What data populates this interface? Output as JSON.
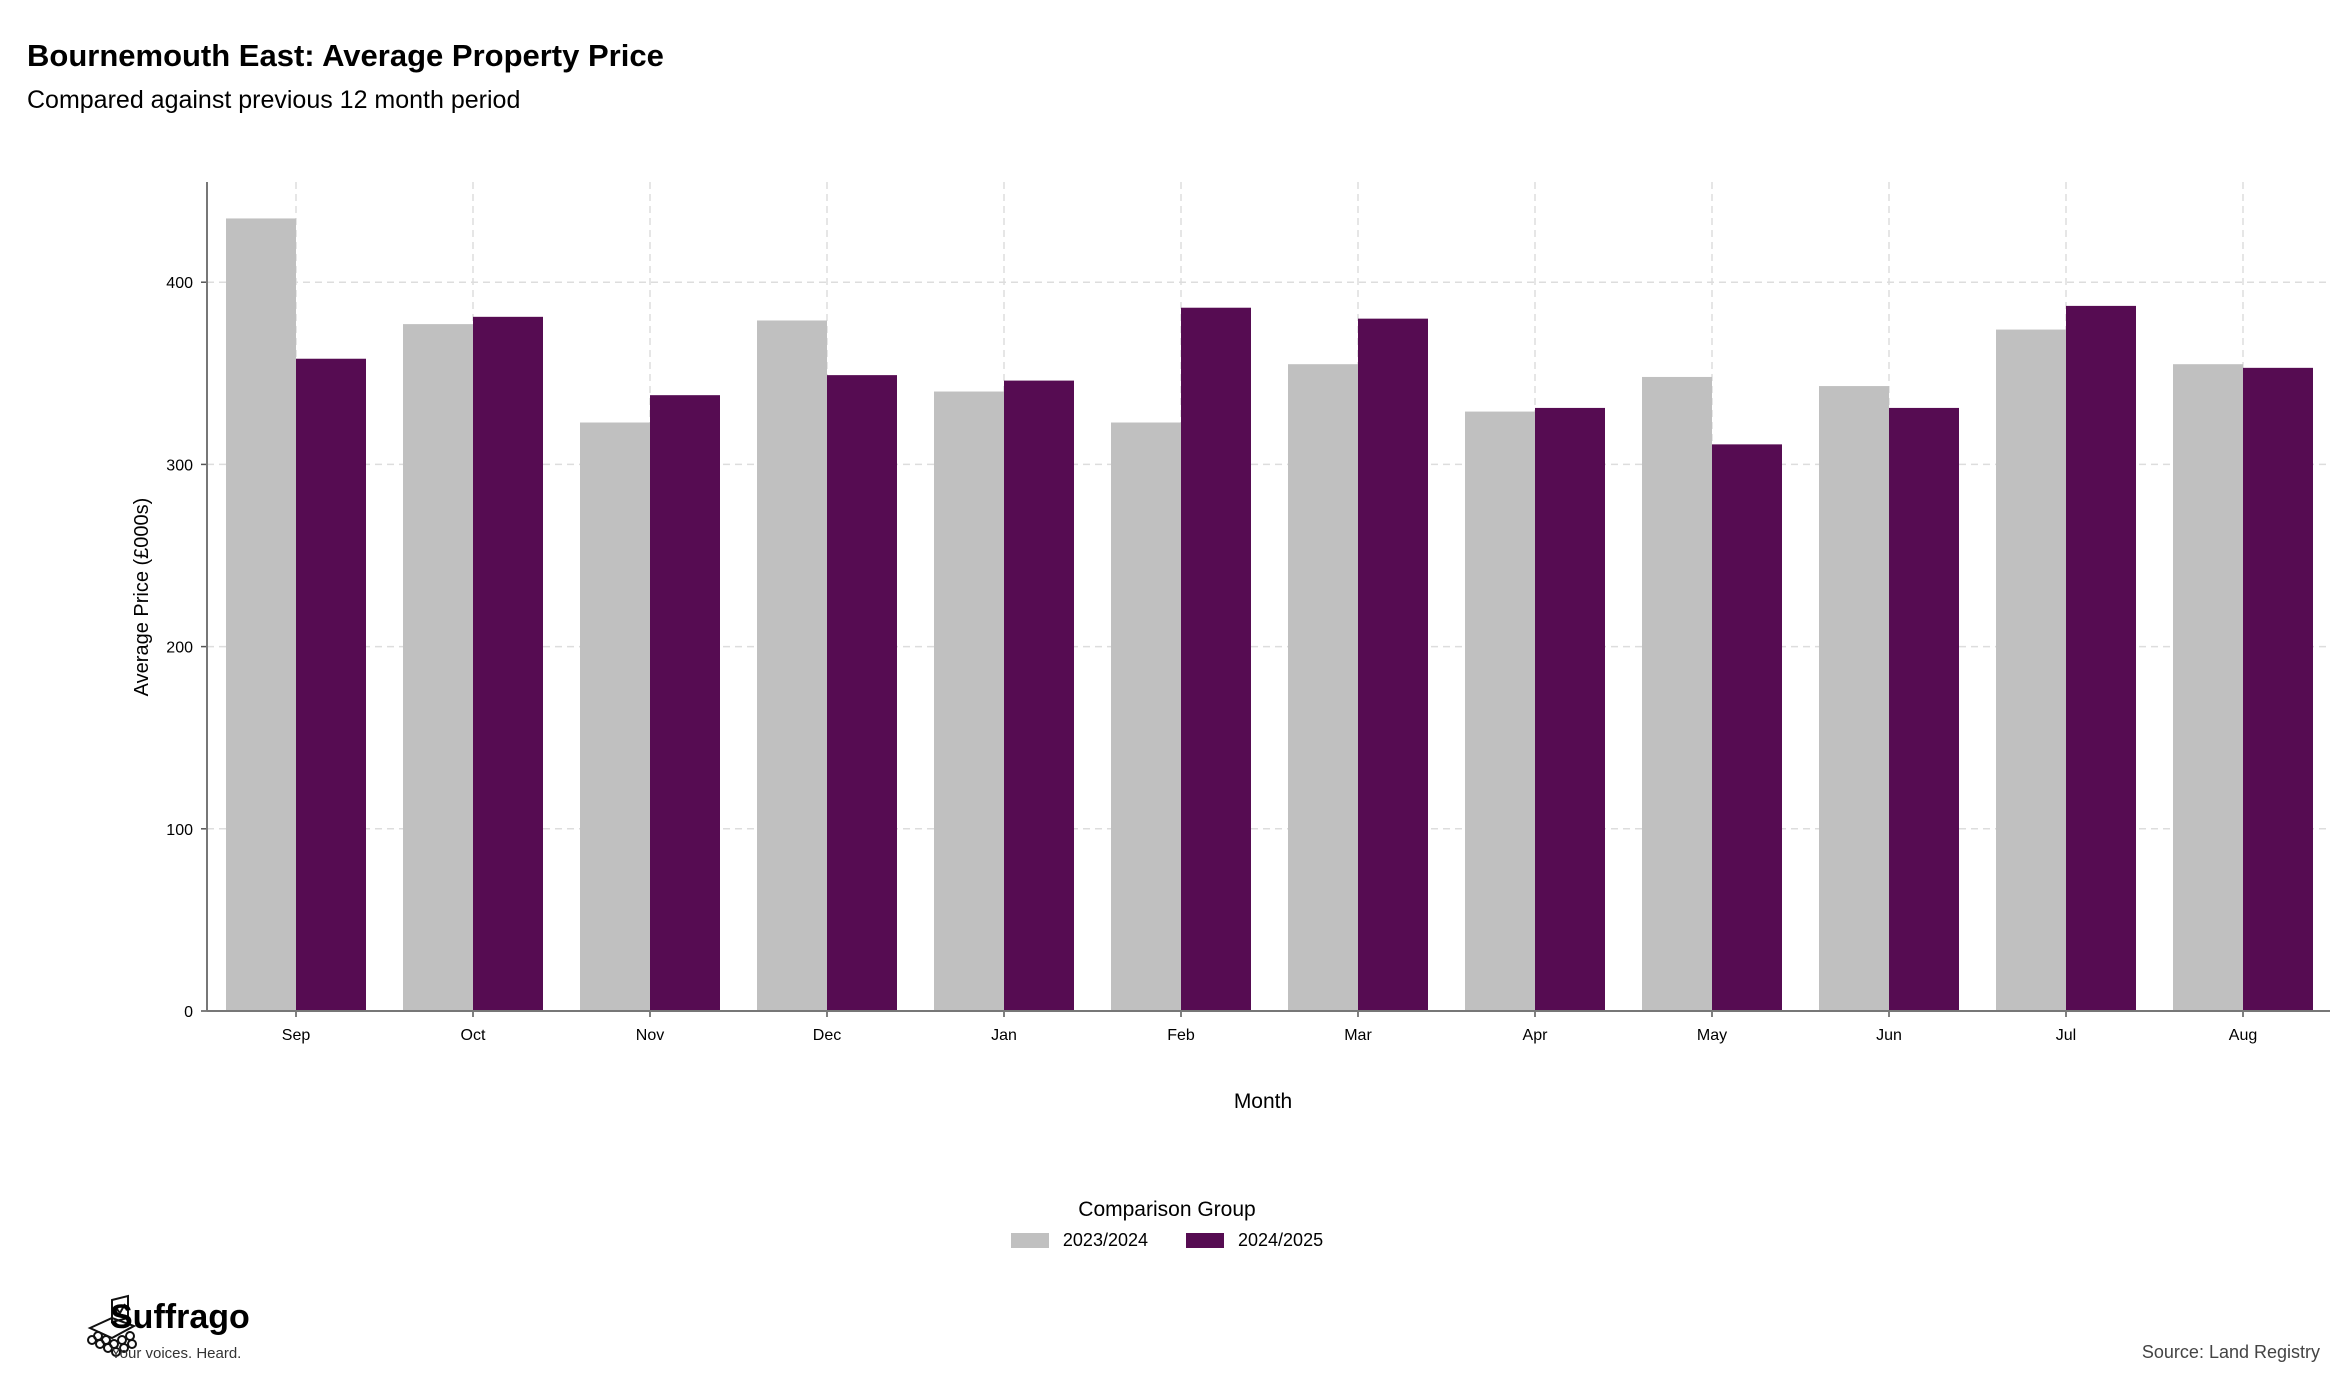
{
  "header": {
    "title": "Bournemouth East: Average Property Price",
    "subtitle": "Compared against previous 12 month period"
  },
  "chart_data": {
    "type": "bar",
    "title": "Bournemouth East: Average Property Price",
    "subtitle": "Compared against previous 12 month period",
    "xlabel": "Month",
    "ylabel": "Average Price (£000s)",
    "ylim": [
      0,
      455
    ],
    "yticks": [
      0,
      100,
      200,
      300,
      400
    ],
    "grid": true,
    "legend_position": "bottom",
    "legend_title": "Comparison Group",
    "categories": [
      "Sep",
      "Oct",
      "Nov",
      "Dec",
      "Jan",
      "Feb",
      "Mar",
      "Apr",
      "May",
      "Jun",
      "Jul",
      "Aug"
    ],
    "series": [
      {
        "name": "2023/2024",
        "color": "#c0c0c0",
        "values": [
          435,
          377,
          323,
          379,
          340,
          323,
          355,
          329,
          348,
          343,
          374,
          355
        ]
      },
      {
        "name": "2024/2025",
        "color": "#560c52",
        "values": [
          358,
          381,
          338,
          349,
          346,
          386,
          380,
          331,
          311,
          331,
          387,
          353
        ]
      }
    ]
  },
  "footer": {
    "brand": "Suffrago",
    "tagline": "Your voices. Heard.",
    "source": "Source: Land Registry"
  }
}
